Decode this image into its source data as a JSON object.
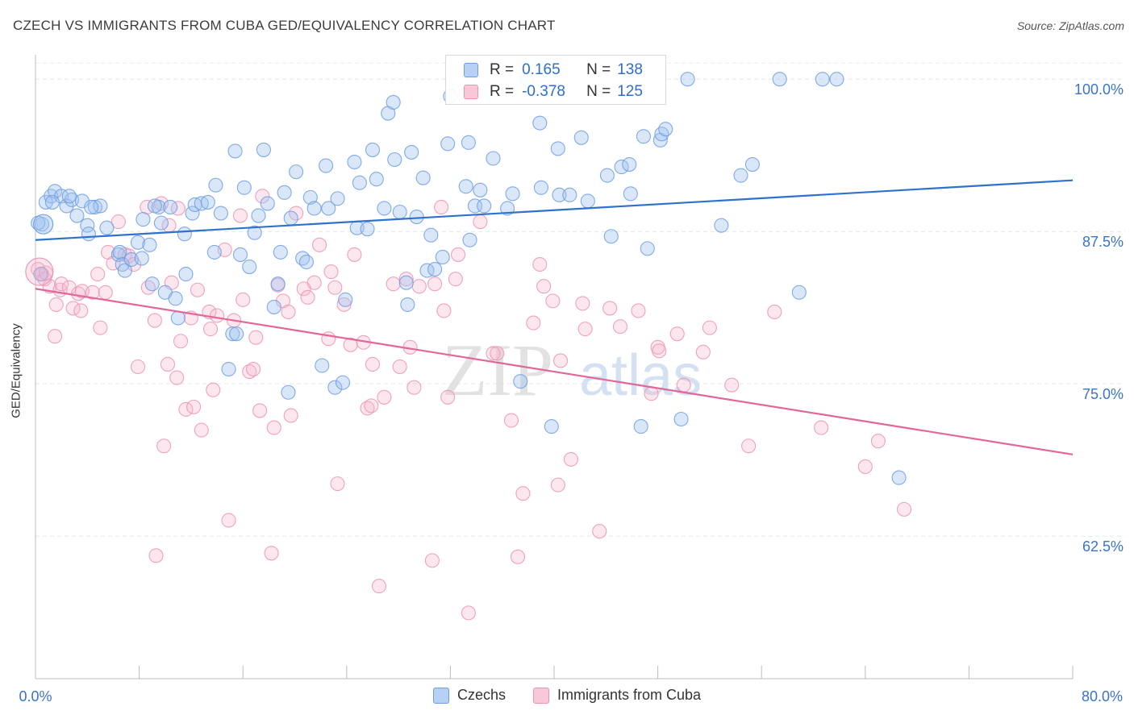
{
  "title": "CZECH VS IMMIGRANTS FROM CUBA GED/EQUIVALENCY CORRELATION CHART",
  "source": "Source: ZipAtlas.com",
  "watermark": {
    "part1": "ZIP",
    "part2": "atlas"
  },
  "legend_top": {
    "czechs": {
      "r_label": "R =",
      "r_value": "0.165",
      "n_label": "N =",
      "n_value": "138"
    },
    "cuba": {
      "r_label": "R =",
      "r_value": "-0.378",
      "n_label": "N =",
      "n_value": "125"
    }
  },
  "chart_data": {
    "type": "scatter",
    "title": "CZECH VS IMMIGRANTS FROM CUBA GED/EQUIVALENCY CORRELATION CHART",
    "xlabel": "",
    "ylabel": "GED/Equivalency",
    "xlim": [
      0,
      80
    ],
    "ylim": [
      50.8,
      102
    ],
    "x_tick_labels": [
      "0.0%",
      "80.0%"
    ],
    "y_ticks": [
      62.5,
      75.0,
      87.5,
      100.0
    ],
    "y_tick_labels": [
      "62.5%",
      "75.0%",
      "87.5%",
      "100.0%"
    ],
    "grid": true,
    "legend_position": "bottom",
    "colors": {
      "czechs": "#6d9ee3",
      "cuba": "#ec93b2",
      "czechs_line": "#2f72cc",
      "cuba_line": "#e3669a"
    },
    "series": [
      {
        "name": "Czechs",
        "trend": [
          [
            0,
            86.8
          ],
          [
            80,
            91.7
          ]
        ],
        "points": [
          [
            0.5,
            88.1
          ],
          [
            0.8,
            89.9
          ],
          [
            1.2,
            90.4
          ],
          [
            1.5,
            90.8
          ],
          [
            2.0,
            90.4
          ],
          [
            2.4,
            89.6
          ],
          [
            2.8,
            90.1
          ],
          [
            3.2,
            88.8
          ],
          [
            3.6,
            90.0
          ],
          [
            4.0,
            88.0
          ],
          [
            4.1,
            87.3
          ],
          [
            4.6,
            89.5
          ],
          [
            5.0,
            89.6
          ],
          [
            5.5,
            87.8
          ],
          [
            6.4,
            85.6
          ],
          [
            6.5,
            85.8
          ],
          [
            6.7,
            84.8
          ],
          [
            6.9,
            84.3
          ],
          [
            7.4,
            85.2
          ],
          [
            7.9,
            86.6
          ],
          [
            8.2,
            85.3
          ],
          [
            8.3,
            88.5
          ],
          [
            8.8,
            86.4
          ],
          [
            9.0,
            83.2
          ],
          [
            9.5,
            89.5
          ],
          [
            9.7,
            88.2
          ],
          [
            10.0,
            82.5
          ],
          [
            10.4,
            89.5
          ],
          [
            10.8,
            82.0
          ],
          [
            11.0,
            80.4
          ],
          [
            11.5,
            87.3
          ],
          [
            11.6,
            84.0
          ],
          [
            12.1,
            89.0
          ],
          [
            12.3,
            89.7
          ],
          [
            12.8,
            89.8
          ],
          [
            13.3,
            89.9
          ],
          [
            13.8,
            85.8
          ],
          [
            13.9,
            91.3
          ],
          [
            14.3,
            89.0
          ],
          [
            14.9,
            76.2
          ],
          [
            15.2,
            79.1
          ],
          [
            15.4,
            94.1
          ],
          [
            15.5,
            79.1
          ],
          [
            15.8,
            85.6
          ],
          [
            16.1,
            91.1
          ],
          [
            16.5,
            84.6
          ],
          [
            16.9,
            87.4
          ],
          [
            17.2,
            88.8
          ],
          [
            17.6,
            94.2
          ],
          [
            17.9,
            89.8
          ],
          [
            18.4,
            81.3
          ],
          [
            18.7,
            83.2
          ],
          [
            18.9,
            85.8
          ],
          [
            19.2,
            90.7
          ],
          [
            19.5,
            74.3
          ],
          [
            19.7,
            88.6
          ],
          [
            20.1,
            92.4
          ],
          [
            20.6,
            85.3
          ],
          [
            20.9,
            85.0
          ],
          [
            21.2,
            90.3
          ],
          [
            21.5,
            89.4
          ],
          [
            22.1,
            76.5
          ],
          [
            22.4,
            92.9
          ],
          [
            22.6,
            89.4
          ],
          [
            23.1,
            74.7
          ],
          [
            23.3,
            90.2
          ],
          [
            23.7,
            75.1
          ],
          [
            23.9,
            81.9
          ],
          [
            24.6,
            93.2
          ],
          [
            24.8,
            87.8
          ],
          [
            25.0,
            91.5
          ],
          [
            25.6,
            87.7
          ],
          [
            26.0,
            94.2
          ],
          [
            26.3,
            91.8
          ],
          [
            26.9,
            89.4
          ],
          [
            27.2,
            97.2
          ],
          [
            27.6,
            98.1
          ],
          [
            27.7,
            93.4
          ],
          [
            28.1,
            89.1
          ],
          [
            28.6,
            83.3
          ],
          [
            28.7,
            81.5
          ],
          [
            29.0,
            94.0
          ],
          [
            29.4,
            88.7
          ],
          [
            29.9,
            91.9
          ],
          [
            30.2,
            84.3
          ],
          [
            30.5,
            87.2
          ],
          [
            30.8,
            84.4
          ],
          [
            31.4,
            85.4
          ],
          [
            31.8,
            94.7
          ],
          [
            32.0,
            98.6
          ],
          [
            33.2,
            91.2
          ],
          [
            33.4,
            94.8
          ],
          [
            33.5,
            86.8
          ],
          [
            33.9,
            89.6
          ],
          [
            34.3,
            90.9
          ],
          [
            34.6,
            89.6
          ],
          [
            35.3,
            93.5
          ],
          [
            36.4,
            89.4
          ],
          [
            36.8,
            90.6
          ],
          [
            37.4,
            75.2
          ],
          [
            37.9,
            100.0
          ],
          [
            38.9,
            96.4
          ],
          [
            39.0,
            91.1
          ],
          [
            39.8,
            71.5
          ],
          [
            40.3,
            94.3
          ],
          [
            40.4,
            90.5
          ],
          [
            41.2,
            90.5
          ],
          [
            42.1,
            95.2
          ],
          [
            42.6,
            90.0
          ],
          [
            44.1,
            92.1
          ],
          [
            44.4,
            87.1
          ],
          [
            45.2,
            92.8
          ],
          [
            45.8,
            93.0
          ],
          [
            45.9,
            90.6
          ],
          [
            46.7,
            71.5
          ],
          [
            46.9,
            95.3
          ],
          [
            47.2,
            86.1
          ],
          [
            48.2,
            95.0
          ],
          [
            48.3,
            95.5
          ],
          [
            48.6,
            95.9
          ],
          [
            49.8,
            72.1
          ],
          [
            50.3,
            100.0
          ],
          [
            52.9,
            88.0
          ],
          [
            54.4,
            92.1
          ],
          [
            55.3,
            93.0
          ],
          [
            57.4,
            100.0
          ],
          [
            58.9,
            82.5
          ],
          [
            60.7,
            100.0
          ],
          [
            61.8,
            100.0
          ],
          [
            66.6,
            67.3
          ],
          [
            0.2,
            88.2
          ],
          [
            0.4,
            84.0
          ],
          [
            1.3,
            89.9
          ],
          [
            2.6,
            90.4
          ],
          [
            4.3,
            89.5
          ],
          [
            9.2,
            89.6
          ]
        ]
      },
      {
        "name": "Immigrants from Cuba",
        "trend": [
          [
            0,
            82.8
          ],
          [
            80,
            69.2
          ]
        ],
        "points": [
          [
            0.2,
            84.4
          ],
          [
            0.5,
            84.0
          ],
          [
            0.7,
            83.6
          ],
          [
            0.8,
            84.1
          ],
          [
            1.1,
            83.0
          ],
          [
            1.5,
            78.9
          ],
          [
            1.6,
            81.5
          ],
          [
            1.9,
            82.7
          ],
          [
            2.0,
            83.2
          ],
          [
            2.6,
            82.9
          ],
          [
            2.9,
            81.2
          ],
          [
            3.3,
            82.4
          ],
          [
            3.5,
            81.0
          ],
          [
            3.6,
            82.6
          ],
          [
            4.4,
            82.5
          ],
          [
            4.8,
            84.0
          ],
          [
            5.0,
            79.6
          ],
          [
            5.4,
            82.5
          ],
          [
            5.6,
            85.8
          ],
          [
            6.0,
            84.9
          ],
          [
            6.4,
            88.3
          ],
          [
            6.9,
            85.6
          ],
          [
            7.2,
            85.5
          ],
          [
            7.6,
            84.8
          ],
          [
            7.9,
            76.4
          ],
          [
            8.6,
            89.5
          ],
          [
            8.7,
            82.9
          ],
          [
            9.2,
            80.2
          ],
          [
            9.3,
            60.9
          ],
          [
            9.7,
            89.8
          ],
          [
            9.9,
            69.9
          ],
          [
            10.2,
            76.6
          ],
          [
            10.3,
            88.0
          ],
          [
            10.5,
            83.3
          ],
          [
            10.9,
            75.5
          ],
          [
            11.0,
            89.4
          ],
          [
            11.2,
            78.5
          ],
          [
            11.6,
            72.9
          ],
          [
            12.0,
            80.4
          ],
          [
            12.2,
            73.1
          ],
          [
            12.5,
            82.7
          ],
          [
            12.8,
            71.2
          ],
          [
            13.4,
            80.9
          ],
          [
            13.5,
            79.5
          ],
          [
            13.7,
            74.5
          ],
          [
            14.0,
            80.6
          ],
          [
            14.6,
            86.0
          ],
          [
            14.9,
            63.8
          ],
          [
            15.3,
            80.2
          ],
          [
            15.8,
            88.8
          ],
          [
            16.0,
            81.9
          ],
          [
            16.5,
            76.0
          ],
          [
            16.8,
            76.2
          ],
          [
            17.0,
            78.8
          ],
          [
            17.3,
            72.8
          ],
          [
            17.5,
            90.4
          ],
          [
            18.2,
            61.1
          ],
          [
            18.4,
            71.4
          ],
          [
            18.7,
            83.1
          ],
          [
            19.1,
            81.8
          ],
          [
            19.5,
            80.9
          ],
          [
            19.7,
            72.4
          ],
          [
            20.1,
            89.0
          ],
          [
            20.7,
            82.8
          ],
          [
            21.0,
            82.1
          ],
          [
            21.5,
            83.3
          ],
          [
            21.9,
            86.4
          ],
          [
            22.6,
            78.7
          ],
          [
            22.8,
            84.2
          ],
          [
            23.1,
            82.9
          ],
          [
            23.3,
            66.8
          ],
          [
            23.8,
            81.5
          ],
          [
            24.3,
            78.2
          ],
          [
            24.6,
            85.6
          ],
          [
            25.3,
            78.4
          ],
          [
            25.6,
            73.0
          ],
          [
            25.9,
            73.2
          ],
          [
            26.0,
            76.6
          ],
          [
            26.5,
            58.4
          ],
          [
            26.9,
            73.9
          ],
          [
            27.6,
            83.2
          ],
          [
            28.1,
            76.4
          ],
          [
            28.6,
            83.6
          ],
          [
            28.9,
            78.0
          ],
          [
            29.2,
            74.7
          ],
          [
            29.6,
            83.0
          ],
          [
            30.6,
            60.5
          ],
          [
            30.8,
            83.2
          ],
          [
            31.3,
            89.5
          ],
          [
            31.5,
            81.0
          ],
          [
            31.8,
            73.9
          ],
          [
            32.4,
            83.6
          ],
          [
            32.6,
            85.6
          ],
          [
            33.4,
            56.2
          ],
          [
            34.3,
            88.3
          ],
          [
            35.3,
            77.5
          ],
          [
            35.6,
            77.5
          ],
          [
            36.7,
            72.0
          ],
          [
            37.2,
            60.8
          ],
          [
            37.6,
            66.0
          ],
          [
            38.4,
            80.0
          ],
          [
            38.9,
            84.8
          ],
          [
            39.2,
            83.0
          ],
          [
            39.9,
            81.8
          ],
          [
            40.3,
            66.7
          ],
          [
            40.5,
            76.9
          ],
          [
            41.3,
            68.8
          ],
          [
            42.2,
            81.6
          ],
          [
            42.4,
            79.5
          ],
          [
            43.5,
            62.9
          ],
          [
            44.3,
            81.2
          ],
          [
            45.1,
            79.7
          ],
          [
            46.5,
            81.0
          ],
          [
            47.5,
            74.2
          ],
          [
            48.0,
            78.0
          ],
          [
            48.1,
            77.7
          ],
          [
            49.5,
            79.1
          ],
          [
            50.0,
            74.9
          ],
          [
            51.5,
            77.6
          ],
          [
            52.0,
            79.6
          ],
          [
            53.7,
            74.9
          ],
          [
            55.0,
            69.9
          ],
          [
            57.0,
            80.9
          ],
          [
            60.6,
            71.4
          ],
          [
            64.0,
            68.2
          ],
          [
            65.0,
            70.3
          ],
          [
            67.0,
            64.7
          ]
        ]
      }
    ]
  },
  "bottom_legend": {
    "czechs": "Czechs",
    "cuba": "Immigrants from Cuba"
  }
}
